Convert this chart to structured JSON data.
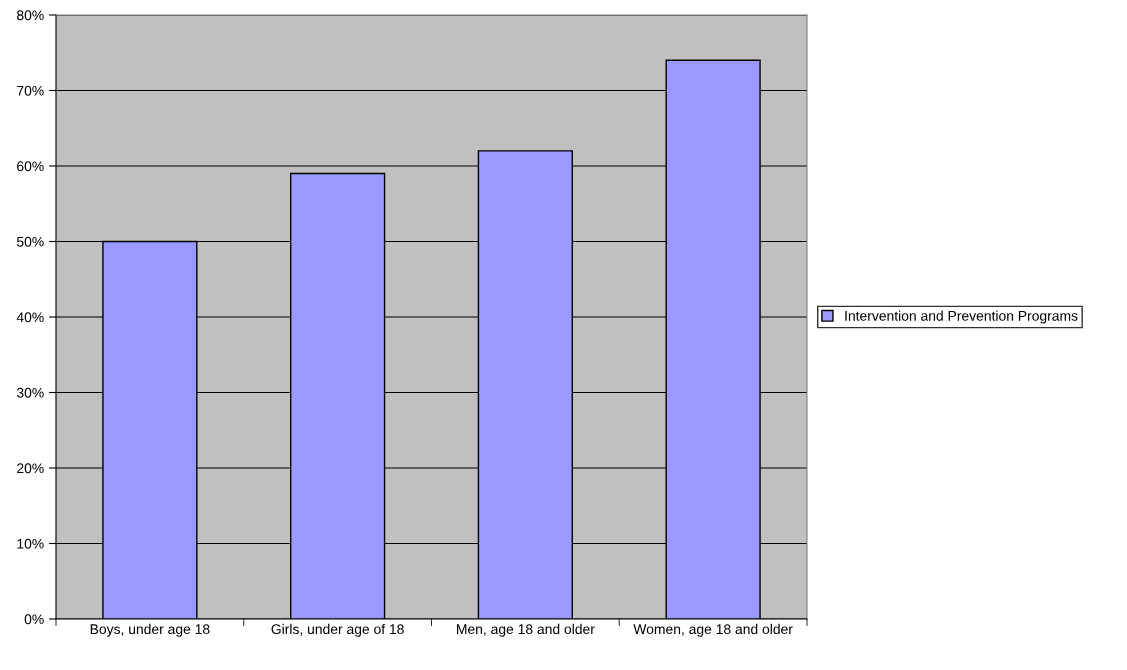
{
  "chart_data": {
    "type": "bar",
    "categories": [
      "Boys, under age 18",
      "Girls, under age of 18",
      "Men, age 18 and older",
      "Women, age 18 and older"
    ],
    "series": [
      {
        "name": "Intervention and Prevention Programs",
        "color": "#9999ff",
        "values": [
          50,
          59,
          62,
          74
        ]
      }
    ],
    "ylim": [
      0,
      80
    ],
    "yticks": [
      {
        "value": 0,
        "label": "0%"
      },
      {
        "value": 10,
        "label": "10%"
      },
      {
        "value": 20,
        "label": "20%"
      },
      {
        "value": 30,
        "label": "30%"
      },
      {
        "value": 40,
        "label": "40%"
      },
      {
        "value": 50,
        "label": "50%"
      },
      {
        "value": 60,
        "label": "60%"
      },
      {
        "value": 70,
        "label": "70%"
      },
      {
        "value": 80,
        "label": "80%"
      }
    ],
    "grid": "y",
    "legend": "right"
  }
}
